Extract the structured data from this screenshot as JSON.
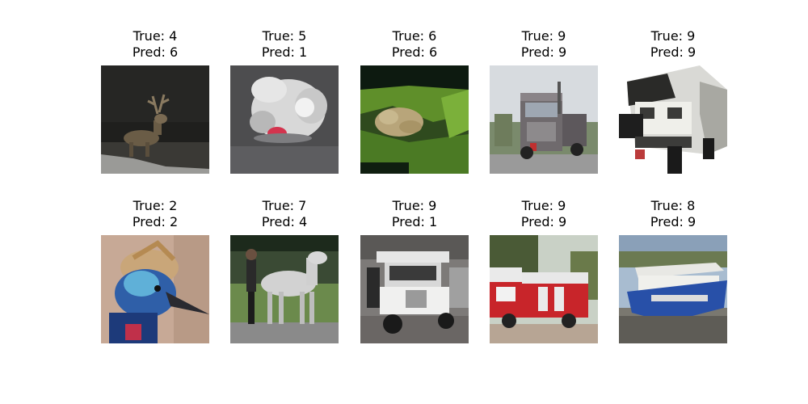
{
  "grid": {
    "items": [
      {
        "true_label": "True: 4",
        "pred_label": "Pred: 6",
        "subject": "deer-at-night"
      },
      {
        "true_label": "True: 5",
        "pred_label": "Pred: 1",
        "subject": "white-dog-with-pink-tongue"
      },
      {
        "true_label": "True: 6",
        "pred_label": "Pred: 6",
        "subject": "frog-on-leaves"
      },
      {
        "true_label": "True: 9",
        "pred_label": "Pred: 9",
        "subject": "semi-truck"
      },
      {
        "true_label": "True: 9",
        "pred_label": "Pred: 9",
        "subject": "white-truck-front"
      },
      {
        "true_label": "True: 2",
        "pred_label": "Pred: 2",
        "subject": "cassowary-bird-head"
      },
      {
        "true_label": "True: 7",
        "pred_label": "Pred: 4",
        "subject": "person-with-white-horse"
      },
      {
        "true_label": "True: 9",
        "pred_label": "Pred: 1",
        "subject": "white-utility-truck"
      },
      {
        "true_label": "True: 9",
        "pred_label": "Pred: 9",
        "subject": "red-fire-truck"
      },
      {
        "true_label": "True: 8",
        "pred_label": "Pred: 9",
        "subject": "blue-white-boat"
      }
    ]
  }
}
